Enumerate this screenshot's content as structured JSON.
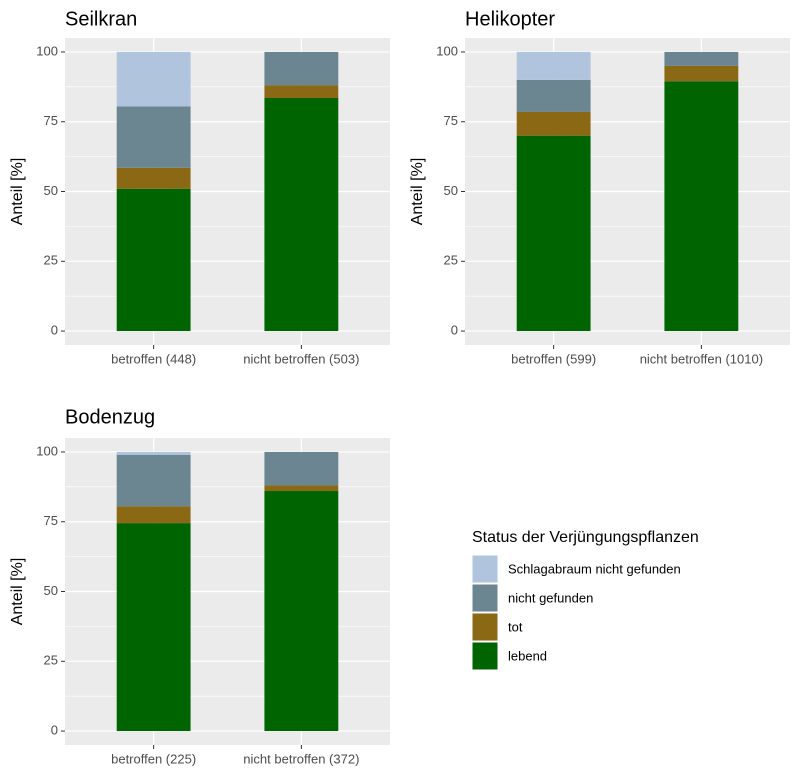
{
  "legend": {
    "title": "Status der Verjüngungspflanzen",
    "position": "right"
  },
  "chart_data": [
    {
      "type": "bar",
      "stacked": true,
      "title": "Seilkran",
      "ylabel": "Anteil [%]",
      "categories": [
        "betroffen (448)",
        "nicht betroffen (503)"
      ],
      "series": [
        {
          "name": "lebend",
          "color": "#006400",
          "values": [
            51,
            83.5
          ]
        },
        {
          "name": "tot",
          "color": "#8b6914",
          "values": [
            7.5,
            4.5
          ]
        },
        {
          "name": "nicht gefunden",
          "color": "#6b8591",
          "values": [
            22,
            12
          ]
        },
        {
          "name": "Schlagabraum nicht gefunden",
          "color": "#b0c4de",
          "values": [
            19.5,
            0
          ]
        }
      ],
      "ylim": [
        -5,
        105
      ],
      "yticks": [
        0,
        25,
        50,
        75,
        100
      ],
      "grid": true
    },
    {
      "type": "bar",
      "stacked": true,
      "title": "Helikopter",
      "ylabel": "Anteil [%]",
      "categories": [
        "betroffen (599)",
        "nicht betroffen (1010)"
      ],
      "series": [
        {
          "name": "lebend",
          "color": "#006400",
          "values": [
            70,
            89.5
          ]
        },
        {
          "name": "tot",
          "color": "#8b6914",
          "values": [
            8.5,
            5.5
          ]
        },
        {
          "name": "nicht gefunden",
          "color": "#6b8591",
          "values": [
            11.5,
            5
          ]
        },
        {
          "name": "Schlagabraum nicht gefunden",
          "color": "#b0c4de",
          "values": [
            10,
            0
          ]
        }
      ],
      "ylim": [
        -5,
        105
      ],
      "yticks": [
        0,
        25,
        50,
        75,
        100
      ],
      "grid": true
    },
    {
      "type": "bar",
      "stacked": true,
      "title": "Bodenzug",
      "ylabel": "Anteil [%]",
      "categories": [
        "betroffen (225)",
        "nicht betroffen (372)"
      ],
      "series": [
        {
          "name": "lebend",
          "color": "#006400",
          "values": [
            74.5,
            86
          ]
        },
        {
          "name": "tot",
          "color": "#8b6914",
          "values": [
            6,
            2
          ]
        },
        {
          "name": "nicht gefunden",
          "color": "#6b8591",
          "values": [
            18.5,
            12
          ]
        },
        {
          "name": "Schlagabraum nicht gefunden",
          "color": "#b0c4de",
          "values": [
            1,
            0
          ]
        }
      ],
      "ylim": [
        -5,
        105
      ],
      "yticks": [
        0,
        25,
        50,
        75,
        100
      ],
      "grid": true
    }
  ]
}
